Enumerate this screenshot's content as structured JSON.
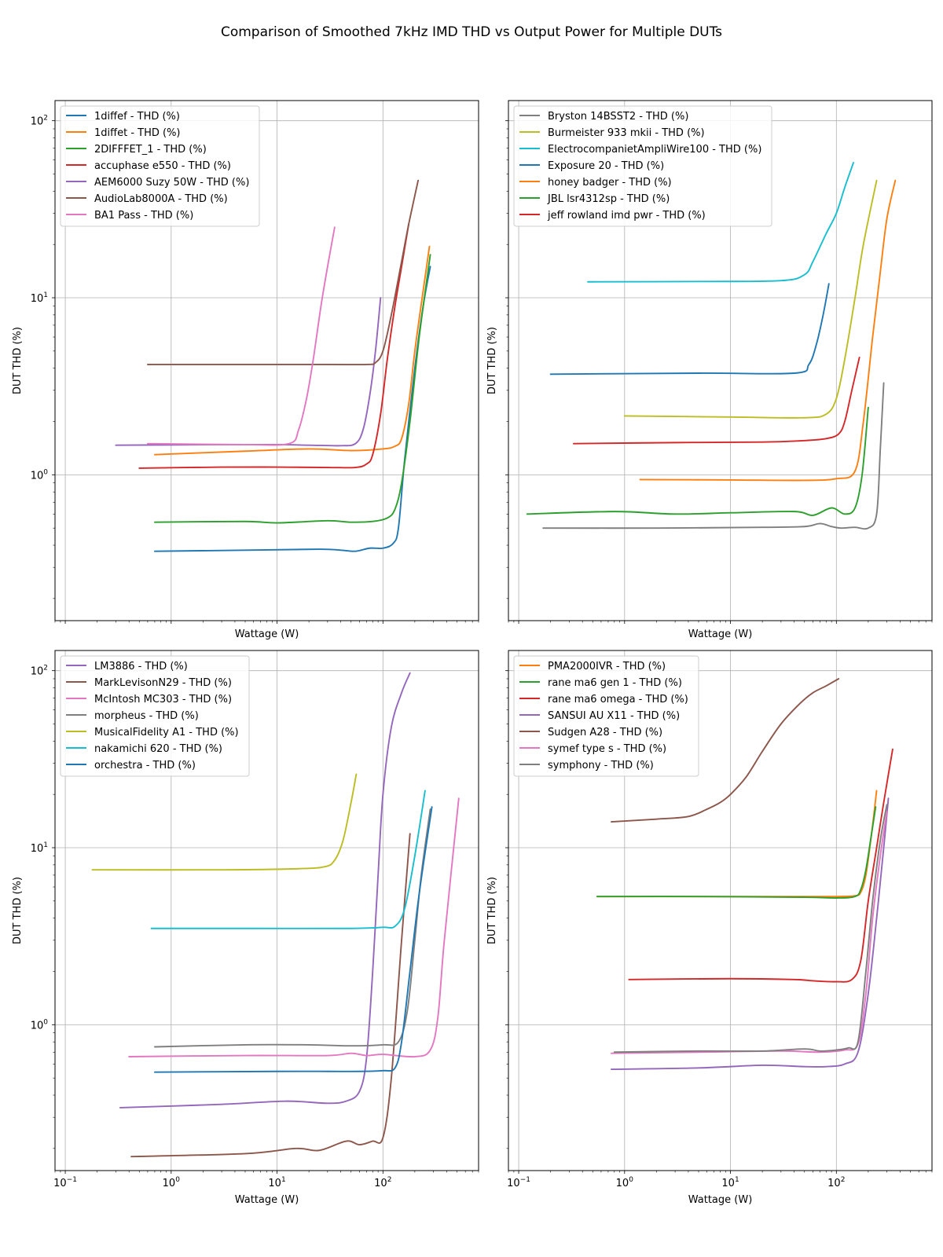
{
  "figure_title": "Comparison of Smoothed 7kHz IMD THD vs Output Power for Multiple DUTs",
  "colors": {
    "blue": "#1f77b4",
    "orange": "#ff7f0e",
    "green": "#2ca02c",
    "red": "#d62728",
    "purple": "#9467bd",
    "brown": "#8c564b",
    "pink": "#e377c2",
    "gray": "#7f7f7f",
    "olive": "#bcbd22",
    "cyan": "#17becf"
  },
  "chart_data": [
    {
      "type": "line",
      "xscale": "log",
      "yscale": "log",
      "xlabel": "Wattage (W)",
      "ylabel": "DUT THD (%)",
      "xlim": [
        0.08,
        800
      ],
      "ylim": [
        0.15,
        130
      ],
      "legend_position": "top-left",
      "x_ticks": [
        {
          "value": 0.1,
          "base": "10",
          "exp": "−1"
        },
        {
          "value": 1,
          "base": "10",
          "exp": "0"
        },
        {
          "value": 10,
          "base": "10",
          "exp": "1"
        },
        {
          "value": 100,
          "base": "10",
          "exp": "2"
        }
      ],
      "y_ticks": [
        {
          "value": 1,
          "base": "10",
          "exp": "0"
        },
        {
          "value": 10,
          "base": "10",
          "exp": "1"
        },
        {
          "value": 100,
          "base": "10",
          "exp": "2"
        }
      ],
      "series": [
        {
          "name": "1diffef - THD (%)",
          "color": "#1f77b4",
          "x": [
            0.7,
            5,
            25,
            40,
            55,
            75,
            100,
            125,
            140,
            160,
            200,
            240,
            280
          ],
          "y": [
            0.37,
            0.375,
            0.38,
            0.375,
            0.37,
            0.385,
            0.385,
            0.41,
            0.5,
            1.2,
            4,
            9,
            15
          ]
        },
        {
          "name": "1diffet - THD (%)",
          "color": "#ff7f0e",
          "x": [
            0.7,
            5,
            20,
            50,
            100,
            130,
            150,
            175,
            200,
            240,
            275
          ],
          "y": [
            1.3,
            1.36,
            1.4,
            1.37,
            1.4,
            1.45,
            1.6,
            2.5,
            5,
            11,
            19.5
          ]
        },
        {
          "name": "2DIFFFET_1 - THD (%)",
          "color": "#2ca02c",
          "x": [
            0.7,
            5,
            10,
            30,
            50,
            80,
            110,
            130,
            150,
            180,
            220,
            280
          ],
          "y": [
            0.54,
            0.545,
            0.535,
            0.55,
            0.54,
            0.545,
            0.57,
            0.64,
            0.9,
            2,
            6,
            17.5
          ]
        },
        {
          "name": "accuphase e550 - THD (%)",
          "color": "#d62728",
          "x": [
            0.5,
            3,
            10,
            30,
            55,
            70,
            80,
            95,
            110,
            130,
            150,
            175
          ],
          "y": [
            1.09,
            1.105,
            1.105,
            1.1,
            1.1,
            1.15,
            1.3,
            2.2,
            4.5,
            9,
            15,
            26
          ]
        },
        {
          "name": "AEM6000 Suzy 50W - THD (%)",
          "color": "#9467bd",
          "x": [
            0.3,
            3,
            10,
            20,
            40,
            55,
            65,
            75,
            85,
            95
          ],
          "y": [
            1.47,
            1.48,
            1.48,
            1.47,
            1.46,
            1.5,
            1.8,
            2.8,
            5,
            10
          ]
        },
        {
          "name": "AudioLab8000A - THD (%)",
          "color": "#8c564b",
          "x": [
            0.6,
            5,
            30,
            70,
            85,
            100,
            120,
            150,
            175,
            215
          ],
          "y": [
            4.2,
            4.2,
            4.2,
            4.2,
            4.3,
            5,
            8,
            16,
            26,
            46
          ]
        },
        {
          "name": "BA1 Pass - THD (%)",
          "color": "#e377c2",
          "x": [
            0.6,
            5,
            13,
            16,
            19,
            22,
            26,
            30,
            35
          ],
          "y": [
            1.5,
            1.48,
            1.5,
            1.8,
            2.7,
            4.5,
            9,
            15,
            25
          ]
        }
      ]
    },
    {
      "type": "line",
      "xscale": "log",
      "yscale": "log",
      "xlabel": "Wattage (W)",
      "ylabel": "DUT THD (%)",
      "xlim": [
        0.08,
        800
      ],
      "ylim": [
        0.15,
        130
      ],
      "legend_position": "top-left",
      "x_ticks": [
        {
          "value": 0.1,
          "base": "10",
          "exp": "−1"
        },
        {
          "value": 1,
          "base": "10",
          "exp": "0"
        },
        {
          "value": 10,
          "base": "10",
          "exp": "1"
        },
        {
          "value": 100,
          "base": "10",
          "exp": "2"
        }
      ],
      "y_ticks": [
        {
          "value": 1,
          "base": "10",
          "exp": "0"
        },
        {
          "value": 10,
          "base": "10",
          "exp": "1"
        },
        {
          "value": 100,
          "base": "10",
          "exp": "2"
        }
      ],
      "series": [
        {
          "name": "Bryston 14BSST2 - THD (%)",
          "color": "#7f7f7f",
          "x": [
            0.17,
            2,
            20,
            50,
            70,
            90,
            110,
            150,
            200,
            240,
            260,
            280
          ],
          "y": [
            0.5,
            0.5,
            0.505,
            0.51,
            0.53,
            0.51,
            0.5,
            0.505,
            0.5,
            0.6,
            1.4,
            3.3
          ]
        },
        {
          "name": "Burmeister 933 mkii - THD (%)",
          "color": "#bcbd22",
          "x": [
            1,
            10,
            50,
            80,
            100,
            120,
            150,
            180,
            240
          ],
          "y": [
            2.15,
            2.12,
            2.1,
            2.2,
            2.7,
            4.5,
            10,
            20,
            46
          ]
        },
        {
          "name": "ElectrocompanietAmpliWire100 - THD (%)",
          "color": "#17becf",
          "x": [
            0.45,
            5,
            30,
            50,
            60,
            80,
            100,
            120,
            145
          ],
          "y": [
            12.3,
            12.35,
            12.5,
            13.5,
            16,
            23,
            30,
            42,
            58
          ]
        },
        {
          "name": "Exposure 20 - THD (%)",
          "color": "#1f77b4",
          "x": [
            0.2,
            5,
            40,
            55,
            65,
            75,
            85
          ],
          "y": [
            3.7,
            3.75,
            3.75,
            4.2,
            5.5,
            8,
            12
          ]
        },
        {
          "name": "honey badger - THD (%)",
          "color": "#ff7f0e",
          "x": [
            1.4,
            10,
            50,
            100,
            150,
            180,
            220,
            260,
            300,
            360
          ],
          "y": [
            0.94,
            0.935,
            0.93,
            0.95,
            1.05,
            2,
            6,
            14,
            28,
            46
          ]
        },
        {
          "name": "JBL lsr4312sp - THD (%)",
          "color": "#2ca02c",
          "x": [
            0.12,
            0.8,
            3,
            10,
            40,
            60,
            90,
            120,
            150,
            175,
            200
          ],
          "y": [
            0.6,
            0.62,
            0.6,
            0.61,
            0.62,
            0.59,
            0.65,
            0.6,
            0.65,
            1,
            2.4
          ]
        },
        {
          "name": "jeff rowland imd pwr - THD (%)",
          "color": "#d62728",
          "x": [
            0.33,
            3,
            20,
            50,
            80,
            105,
            120,
            140,
            165
          ],
          "y": [
            1.5,
            1.52,
            1.53,
            1.56,
            1.6,
            1.7,
            2,
            3,
            4.6
          ]
        }
      ]
    },
    {
      "type": "line",
      "xscale": "log",
      "yscale": "log",
      "xlabel": "Wattage (W)",
      "ylabel": "DUT THD (%)",
      "xlim": [
        0.08,
        800
      ],
      "ylim": [
        0.15,
        130
      ],
      "legend_position": "top-left",
      "x_ticks": [
        {
          "value": 0.1,
          "base": "10",
          "exp": "−1"
        },
        {
          "value": 1,
          "base": "10",
          "exp": "0"
        },
        {
          "value": 10,
          "base": "10",
          "exp": "1"
        },
        {
          "value": 100,
          "base": "10",
          "exp": "2"
        }
      ],
      "y_ticks": [
        {
          "value": 1,
          "base": "10",
          "exp": "0"
        },
        {
          "value": 10,
          "base": "10",
          "exp": "1"
        },
        {
          "value": 100,
          "base": "10",
          "exp": "2"
        }
      ],
      "series": [
        {
          "name": "LM3886 - THD (%)",
          "color": "#9467bd",
          "x": [
            0.33,
            3,
            12,
            30,
            45,
            60,
            70,
            80,
            90,
            100,
            120,
            150,
            180
          ],
          "y": [
            0.34,
            0.355,
            0.37,
            0.36,
            0.37,
            0.42,
            0.65,
            2,
            7,
            20,
            48,
            75,
            97
          ]
        },
        {
          "name": "MarkLevisonN29 - THD (%)",
          "color": "#8c564b",
          "x": [
            0.42,
            5,
            15,
            25,
            45,
            60,
            80,
            100,
            120,
            150,
            180
          ],
          "y": [
            0.18,
            0.187,
            0.2,
            0.195,
            0.22,
            0.21,
            0.22,
            0.23,
            0.5,
            3,
            12
          ]
        },
        {
          "name": "McIntosh MC303 - THD (%)",
          "color": "#e377c2",
          "x": [
            0.4,
            5,
            30,
            50,
            70,
            100,
            200,
            280,
            330,
            380,
            520
          ],
          "y": [
            0.66,
            0.67,
            0.67,
            0.69,
            0.67,
            0.68,
            0.66,
            0.72,
            1.1,
            3,
            19
          ]
        },
        {
          "name": "morpheus - THD (%)",
          "color": "#7f7f7f",
          "x": [
            0.7,
            5,
            20,
            50,
            100,
            140,
            170,
            200,
            230,
            280
          ],
          "y": [
            0.75,
            0.77,
            0.77,
            0.76,
            0.77,
            0.8,
            1.2,
            3,
            7,
            16.5
          ]
        },
        {
          "name": "MusicalFidelity A1 - THD (%)",
          "color": "#bcbd22",
          "x": [
            0.18,
            3,
            15,
            28,
            35,
            42,
            50,
            56
          ],
          "y": [
            7.5,
            7.5,
            7.6,
            7.8,
            8.5,
            11,
            18,
            26
          ]
        },
        {
          "name": "nakamichi 620 - THD (%)",
          "color": "#17becf",
          "x": [
            0.65,
            5,
            50,
            100,
            130,
            160,
            200,
            250
          ],
          "y": [
            3.5,
            3.5,
            3.5,
            3.55,
            3.6,
            4.5,
            9,
            21
          ]
        },
        {
          "name": "orchestra - THD (%)",
          "color": "#1f77b4",
          "x": [
            0.7,
            10,
            30,
            60,
            100,
            130,
            150,
            180,
            220,
            290
          ],
          "y": [
            0.54,
            0.545,
            0.545,
            0.545,
            0.55,
            0.57,
            0.8,
            2,
            5.5,
            17
          ]
        }
      ]
    },
    {
      "type": "line",
      "xscale": "log",
      "yscale": "log",
      "xlabel": "Wattage (W)",
      "ylabel": "DUT THD (%)",
      "xlim": [
        0.08,
        800
      ],
      "ylim": [
        0.15,
        130
      ],
      "legend_position": "top-left",
      "x_ticks": [
        {
          "value": 0.1,
          "base": "10",
          "exp": "−1"
        },
        {
          "value": 1,
          "base": "10",
          "exp": "0"
        },
        {
          "value": 10,
          "base": "10",
          "exp": "1"
        },
        {
          "value": 100,
          "base": "10",
          "exp": "2"
        }
      ],
      "y_ticks": [
        {
          "value": 1,
          "base": "10",
          "exp": "0"
        },
        {
          "value": 10,
          "base": "10",
          "exp": "1"
        },
        {
          "value": 100,
          "base": "10",
          "exp": "2"
        }
      ],
      "series": [
        {
          "name": "PMA2000IVR - THD (%)",
          "color": "#ff7f0e",
          "x": [
            0.55,
            5,
            50,
            100,
            150,
            170,
            190,
            215,
            240
          ],
          "y": [
            5.3,
            5.3,
            5.3,
            5.3,
            5.35,
            5.6,
            7,
            12,
            21
          ]
        },
        {
          "name": "rane ma6 gen 1 - THD (%)",
          "color": "#2ca02c",
          "x": [
            0.55,
            5,
            50,
            100,
            150,
            170,
            190,
            215,
            235
          ],
          "y": [
            5.3,
            5.3,
            5.25,
            5.2,
            5.3,
            5.8,
            7.5,
            12,
            17
          ]
        },
        {
          "name": "rane ma6 omega - THD (%)",
          "color": "#d62728",
          "x": [
            1.1,
            10,
            40,
            60,
            100,
            140,
            170,
            200,
            240,
            280,
            340
          ],
          "y": [
            1.8,
            1.82,
            1.8,
            1.77,
            1.75,
            1.8,
            2.3,
            5,
            10,
            18,
            36
          ]
        },
        {
          "name": "SANSUI AU X11 - THD (%)",
          "color": "#9467bd",
          "x": [
            0.75,
            5,
            20,
            50,
            80,
            120,
            160,
            200,
            240,
            280,
            310
          ],
          "y": [
            0.56,
            0.57,
            0.59,
            0.58,
            0.58,
            0.6,
            0.7,
            1.5,
            4,
            10,
            19
          ]
        },
        {
          "name": "Sudgen A28 - THD (%)",
          "color": "#8c564b",
          "x": [
            0.75,
            2,
            4,
            6,
            8,
            10,
            14,
            20,
            30,
            45,
            60,
            80,
            105
          ],
          "y": [
            14,
            14.5,
            15,
            16.5,
            18,
            20,
            25,
            35,
            50,
            65,
            75,
            82,
            90
          ]
        },
        {
          "name": "symef type s - THD (%)",
          "color": "#e377c2",
          "x": [
            0.75,
            5,
            30,
            70,
            120,
            160,
            190,
            220,
            260,
            300
          ],
          "y": [
            0.69,
            0.7,
            0.71,
            0.7,
            0.72,
            0.78,
            1.5,
            4,
            9,
            16
          ]
        },
        {
          "name": "symphony - THD (%)",
          "color": "#7f7f7f",
          "x": [
            0.8,
            5,
            20,
            50,
            70,
            100,
            130,
            160,
            190,
            220,
            260,
            300
          ],
          "y": [
            0.7,
            0.71,
            0.71,
            0.73,
            0.71,
            0.72,
            0.74,
            0.8,
            2,
            5,
            11,
            17.5
          ]
        }
      ]
    }
  ]
}
